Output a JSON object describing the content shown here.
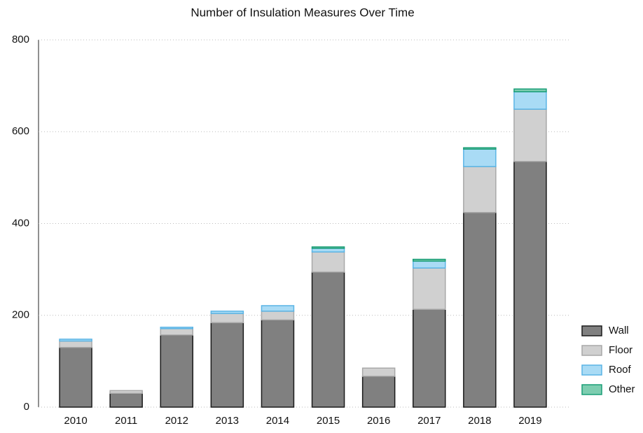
{
  "chart_data": {
    "type": "stacked_bar",
    "title": "Number of Insulation Measures Over Time",
    "categories": [
      "2010",
      "2011",
      "2012",
      "2013",
      "2014",
      "2015",
      "2016",
      "2017",
      "2018",
      "2019"
    ],
    "series": [
      {
        "name": "Wall",
        "color": "#808080",
        "stroke": "#1a1a1a",
        "values": [
          130,
          30,
          157,
          184,
          190,
          294,
          67,
          213,
          424,
          535
        ]
      },
      {
        "name": "Floor",
        "color": "#d0d0d0",
        "stroke": "#a8a8a8",
        "values": [
          14,
          6,
          14,
          20,
          19,
          44,
          18,
          90,
          100,
          114
        ]
      },
      {
        "name": "Roof",
        "color": "#a9dbf5",
        "stroke": "#5ab4e5",
        "values": [
          4,
          0,
          3,
          5,
          12,
          8,
          0,
          15,
          38,
          38
        ]
      },
      {
        "name": "Other",
        "color": "#7dcdb0",
        "stroke": "#1a9e77",
        "values": [
          0,
          0,
          0,
          0,
          0,
          3,
          0,
          4,
          3,
          6
        ]
      }
    ],
    "ylim": [
      0,
      800
    ],
    "yticks": [
      0,
      200,
      400,
      600,
      800
    ],
    "grid": true
  }
}
